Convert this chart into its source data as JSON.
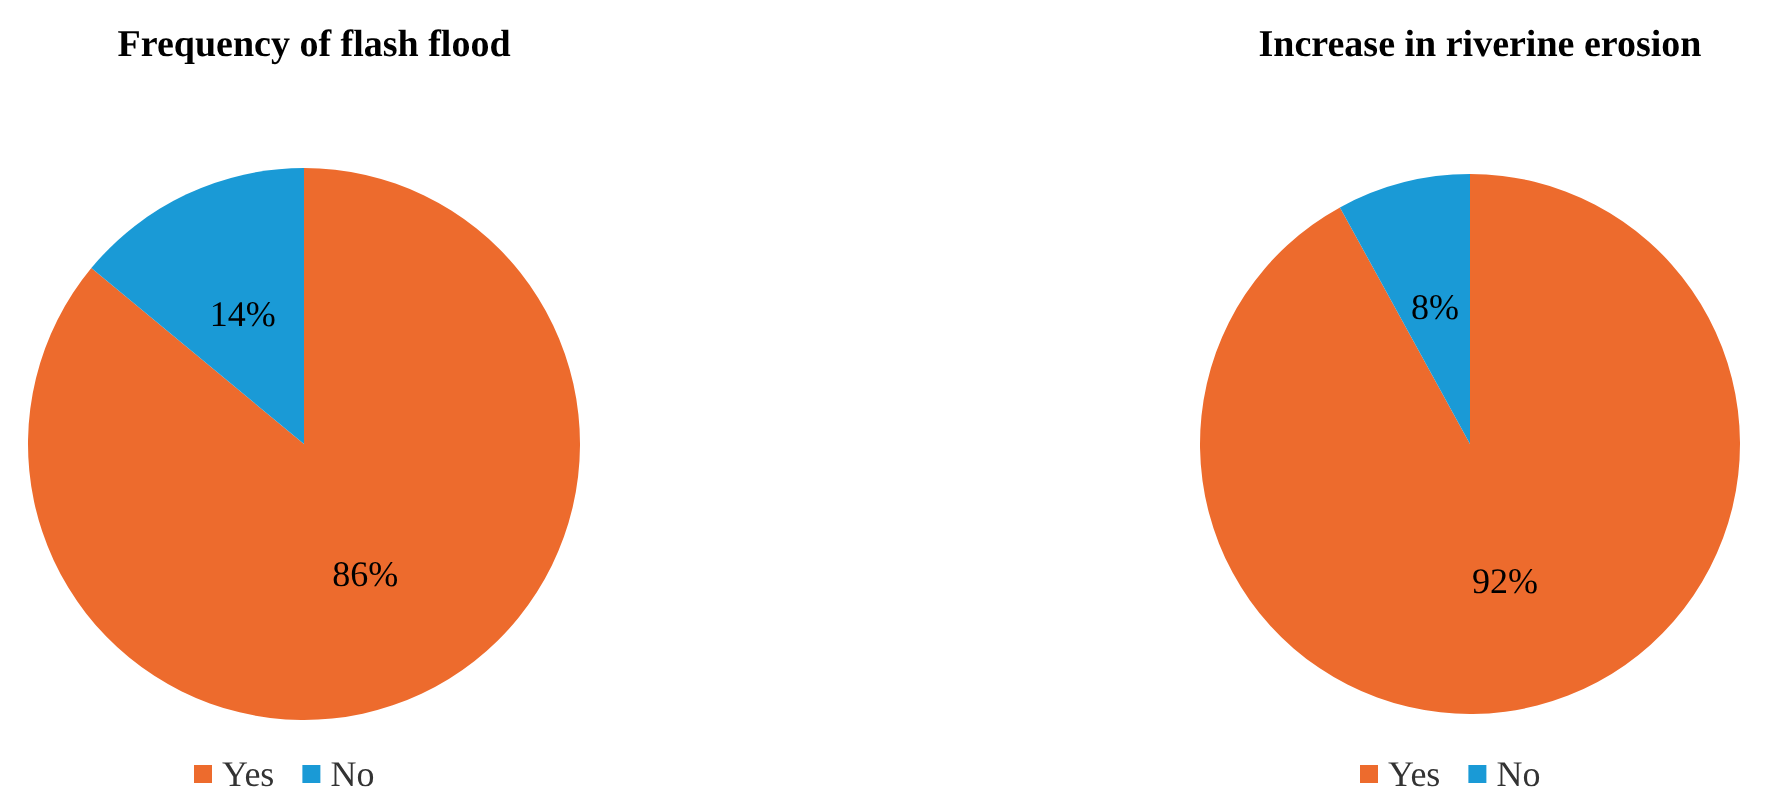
{
  "chart_data": [
    {
      "type": "pie",
      "title": "Frequency of flash flood",
      "categories": [
        "Yes",
        "No"
      ],
      "values": [
        86,
        14
      ],
      "colors": [
        "#ed6b2d",
        "#1a9ad6"
      ],
      "value_labels": [
        "86%",
        "14%"
      ],
      "legend": "bottom"
    },
    {
      "type": "pie",
      "title": "Increase in riverine erosion",
      "categories": [
        "Yes",
        "No"
      ],
      "values": [
        92,
        8
      ],
      "colors": [
        "#ed6b2d",
        "#1a9ad6"
      ],
      "value_labels": [
        "92%",
        "8%"
      ],
      "legend": "bottom"
    }
  ]
}
